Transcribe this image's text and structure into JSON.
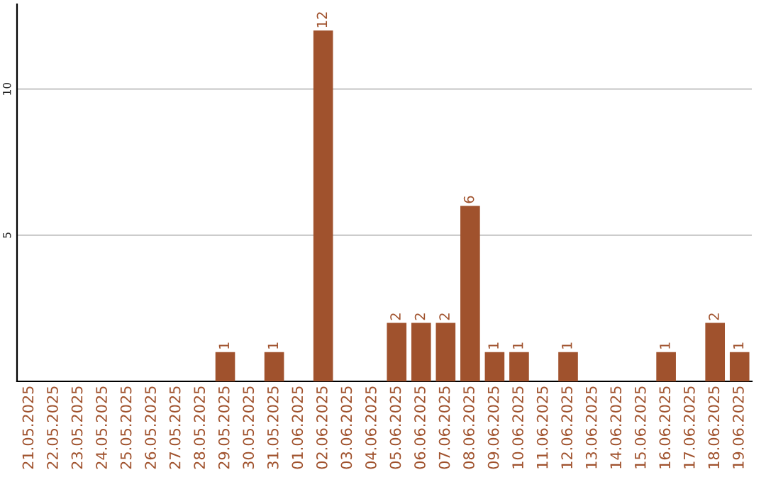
{
  "chart_data": {
    "type": "bar",
    "categories": [
      "21.05.2025",
      "22.05.2025",
      "23.05.2025",
      "24.05.2025",
      "25.05.2025",
      "26.05.2025",
      "27.05.2025",
      "28.05.2025",
      "29.05.2025",
      "30.05.2025",
      "31.05.2025",
      "01.06.2025",
      "02.06.2025",
      "03.06.2025",
      "04.06.2025",
      "05.06.2025",
      "06.06.2025",
      "07.06.2025",
      "08.06.2025",
      "09.06.2025",
      "10.06.2025",
      "11.06.2025",
      "12.06.2025",
      "13.06.2025",
      "14.06.2025",
      "15.06.2025",
      "16.06.2025",
      "17.06.2025",
      "18.06.2025",
      "19.06.2025"
    ],
    "values": [
      null,
      null,
      null,
      null,
      null,
      null,
      null,
      null,
      1,
      null,
      1,
      null,
      12,
      null,
      null,
      2,
      2,
      2,
      6,
      1,
      1,
      null,
      1,
      null,
      null,
      null,
      1,
      null,
      2,
      1
    ],
    "value_labels": [
      null,
      null,
      null,
      null,
      null,
      null,
      null,
      null,
      "1",
      null,
      "1",
      null,
      "12",
      null,
      null,
      "2",
      "2",
      "2",
      "6",
      "1",
      "1",
      null,
      "1",
      null,
      null,
      null,
      "1",
      null,
      "2",
      "1"
    ],
    "color": "#a0522d",
    "ylim": [
      0,
      12.9
    ],
    "yticks": [
      5,
      10
    ],
    "grid": "y",
    "legend": false
  }
}
